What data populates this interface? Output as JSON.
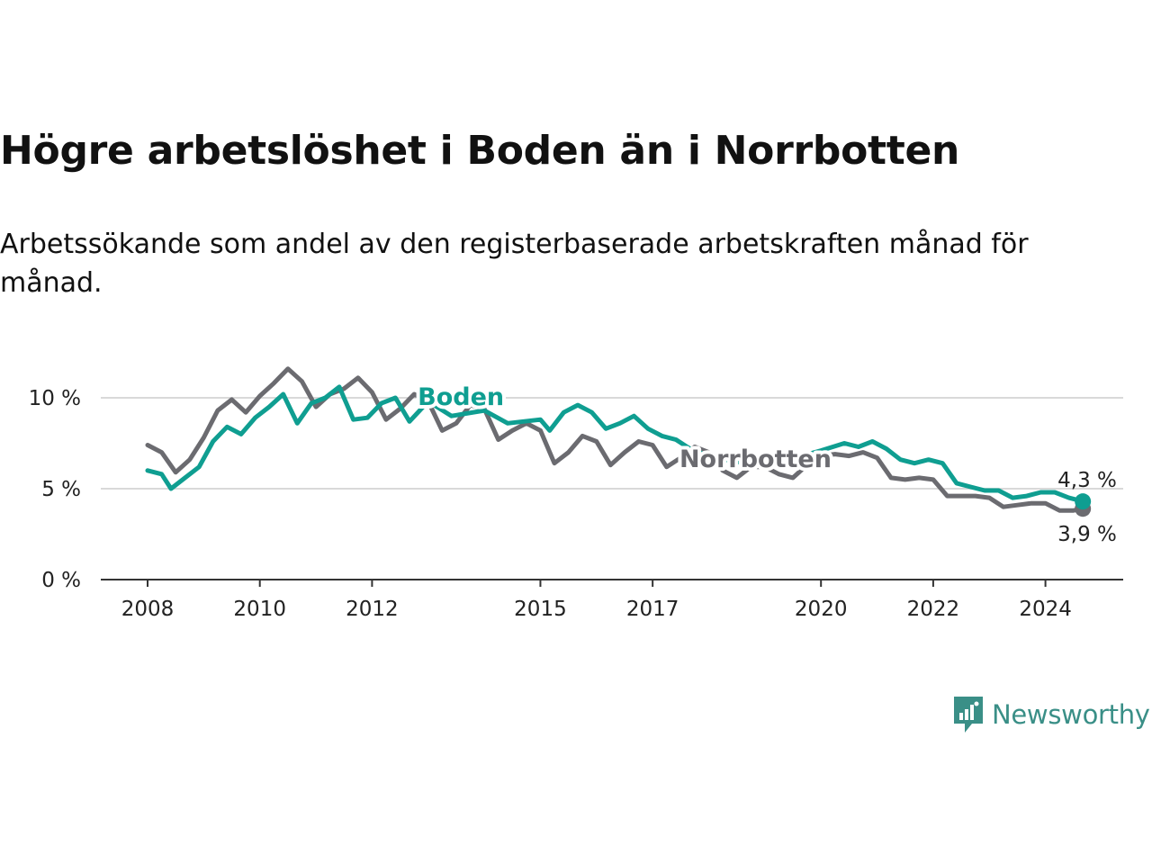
{
  "header": {
    "title": "Högre arbetslöshet i Boden än i Norrbotten",
    "subtitle": "Arbetssökande som andel av den registerbaserade arbetskraften månad för månad."
  },
  "brand": {
    "name": "Newsworthy",
    "icon": "newsworthy-logo-icon",
    "color": "#3a8f87"
  },
  "colors": {
    "boden": "#0f9e91",
    "norrbotten": "#6b6b70",
    "grid": "#d9d9d9",
    "axis": "#333333"
  },
  "chart_data": {
    "type": "line",
    "title": "Högre arbetslöshet i Boden än i Norrbotten",
    "subtitle": "Arbetssökande som andel av den registerbaserade arbetskraften månad för månad.",
    "xlabel": "",
    "ylabel": "",
    "x_ticks": [
      "2008",
      "2010",
      "2012",
      "2015",
      "2017",
      "2020",
      "2022",
      "2024"
    ],
    "y_ticks": [
      "0 %",
      "5 %",
      "10 %"
    ],
    "ylim": [
      0,
      12
    ],
    "xlim": [
      "2007-01",
      "2025-01"
    ],
    "grid": "horizontal",
    "series": [
      {
        "name": "Boden",
        "color": "#0f9e91",
        "end_label": "4,3 %",
        "points": [
          [
            "2008-01",
            6.0
          ],
          [
            "2008-04",
            5.8
          ],
          [
            "2008-06",
            5.0
          ],
          [
            "2008-09",
            5.6
          ],
          [
            "2008-12",
            6.2
          ],
          [
            "2009-03",
            7.6
          ],
          [
            "2009-06",
            8.4
          ],
          [
            "2009-09",
            8.0
          ],
          [
            "2009-12",
            8.9
          ],
          [
            "2010-03",
            9.5
          ],
          [
            "2010-06",
            10.2
          ],
          [
            "2010-09",
            8.6
          ],
          [
            "2010-12",
            9.7
          ],
          [
            "2011-03",
            10.0
          ],
          [
            "2011-06",
            10.6
          ],
          [
            "2011-09",
            8.8
          ],
          [
            "2011-12",
            8.9
          ],
          [
            "2012-03",
            9.7
          ],
          [
            "2012-06",
            10.0
          ],
          [
            "2012-09",
            8.7
          ],
          [
            "2013-01",
            9.8
          ],
          [
            "2013-06",
            9.0
          ],
          [
            "2014-01",
            9.3
          ],
          [
            "2014-06",
            8.6
          ],
          [
            "2015-01",
            8.8
          ],
          [
            "2015-03",
            8.2
          ],
          [
            "2015-06",
            9.2
          ],
          [
            "2015-09",
            9.6
          ],
          [
            "2015-12",
            9.2
          ],
          [
            "2016-03",
            8.3
          ],
          [
            "2016-06",
            8.6
          ],
          [
            "2016-09",
            9.0
          ],
          [
            "2016-12",
            8.3
          ],
          [
            "2017-03",
            7.9
          ],
          [
            "2017-06",
            7.7
          ],
          [
            "2017-09",
            7.2
          ],
          [
            "2018-01",
            6.8
          ],
          [
            "2018-06",
            6.5
          ],
          [
            "2019-01",
            6.3
          ],
          [
            "2019-06",
            6.6
          ],
          [
            "2020-01",
            7.1
          ],
          [
            "2020-06",
            7.5
          ],
          [
            "2020-09",
            7.3
          ],
          [
            "2020-12",
            7.6
          ],
          [
            "2021-03",
            7.2
          ],
          [
            "2021-06",
            6.6
          ],
          [
            "2021-09",
            6.4
          ],
          [
            "2021-12",
            6.6
          ],
          [
            "2022-03",
            6.4
          ],
          [
            "2022-06",
            5.3
          ],
          [
            "2022-09",
            5.1
          ],
          [
            "2022-12",
            4.9
          ],
          [
            "2023-03",
            4.9
          ],
          [
            "2023-06",
            4.5
          ],
          [
            "2023-09",
            4.6
          ],
          [
            "2023-12",
            4.8
          ],
          [
            "2024-03",
            4.8
          ],
          [
            "2024-06",
            4.5
          ],
          [
            "2024-09",
            4.3
          ]
        ]
      },
      {
        "name": "Norrbotten",
        "color": "#6b6b70",
        "end_label": "3,9 %",
        "points": [
          [
            "2008-01",
            7.4
          ],
          [
            "2008-04",
            7.0
          ],
          [
            "2008-07",
            5.9
          ],
          [
            "2008-10",
            6.6
          ],
          [
            "2009-01",
            7.8
          ],
          [
            "2009-04",
            9.3
          ],
          [
            "2009-07",
            9.9
          ],
          [
            "2009-10",
            9.2
          ],
          [
            "2010-01",
            10.1
          ],
          [
            "2010-04",
            10.8
          ],
          [
            "2010-07",
            11.6
          ],
          [
            "2010-10",
            10.9
          ],
          [
            "2011-01",
            9.5
          ],
          [
            "2011-04",
            10.2
          ],
          [
            "2011-07",
            10.5
          ],
          [
            "2011-10",
            11.1
          ],
          [
            "2012-01",
            10.3
          ],
          [
            "2012-04",
            8.8
          ],
          [
            "2012-07",
            9.4
          ],
          [
            "2012-10",
            10.2
          ],
          [
            "2013-01",
            9.8
          ],
          [
            "2013-04",
            8.2
          ],
          [
            "2013-07",
            8.6
          ],
          [
            "2013-10",
            9.6
          ],
          [
            "2014-01",
            9.4
          ],
          [
            "2014-04",
            7.7
          ],
          [
            "2014-07",
            8.2
          ],
          [
            "2014-10",
            8.6
          ],
          [
            "2015-01",
            8.2
          ],
          [
            "2015-04",
            6.4
          ],
          [
            "2015-07",
            7.0
          ],
          [
            "2015-10",
            7.9
          ],
          [
            "2016-01",
            7.6
          ],
          [
            "2016-04",
            6.3
          ],
          [
            "2016-07",
            7.0
          ],
          [
            "2016-10",
            7.6
          ],
          [
            "2017-01",
            7.4
          ],
          [
            "2017-04",
            6.2
          ],
          [
            "2017-07",
            6.7
          ],
          [
            "2017-10",
            7.3
          ],
          [
            "2018-01",
            7.0
          ],
          [
            "2018-04",
            6.0
          ],
          [
            "2018-07",
            5.6
          ],
          [
            "2018-10",
            6.2
          ],
          [
            "2019-01",
            6.2
          ],
          [
            "2019-04",
            5.8
          ],
          [
            "2019-07",
            5.6
          ],
          [
            "2019-10",
            6.3
          ],
          [
            "2020-01",
            6.8
          ],
          [
            "2020-04",
            6.9
          ],
          [
            "2020-07",
            6.8
          ],
          [
            "2020-10",
            7.0
          ],
          [
            "2021-01",
            6.7
          ],
          [
            "2021-04",
            5.6
          ],
          [
            "2021-07",
            5.5
          ],
          [
            "2021-10",
            5.6
          ],
          [
            "2022-01",
            5.5
          ],
          [
            "2022-04",
            4.6
          ],
          [
            "2022-07",
            4.6
          ],
          [
            "2022-10",
            4.6
          ],
          [
            "2023-01",
            4.5
          ],
          [
            "2023-04",
            4.0
          ],
          [
            "2023-07",
            4.1
          ],
          [
            "2023-10",
            4.2
          ],
          [
            "2024-01",
            4.2
          ],
          [
            "2024-04",
            3.8
          ],
          [
            "2024-07",
            3.8
          ],
          [
            "2024-09",
            3.9
          ]
        ]
      }
    ]
  }
}
